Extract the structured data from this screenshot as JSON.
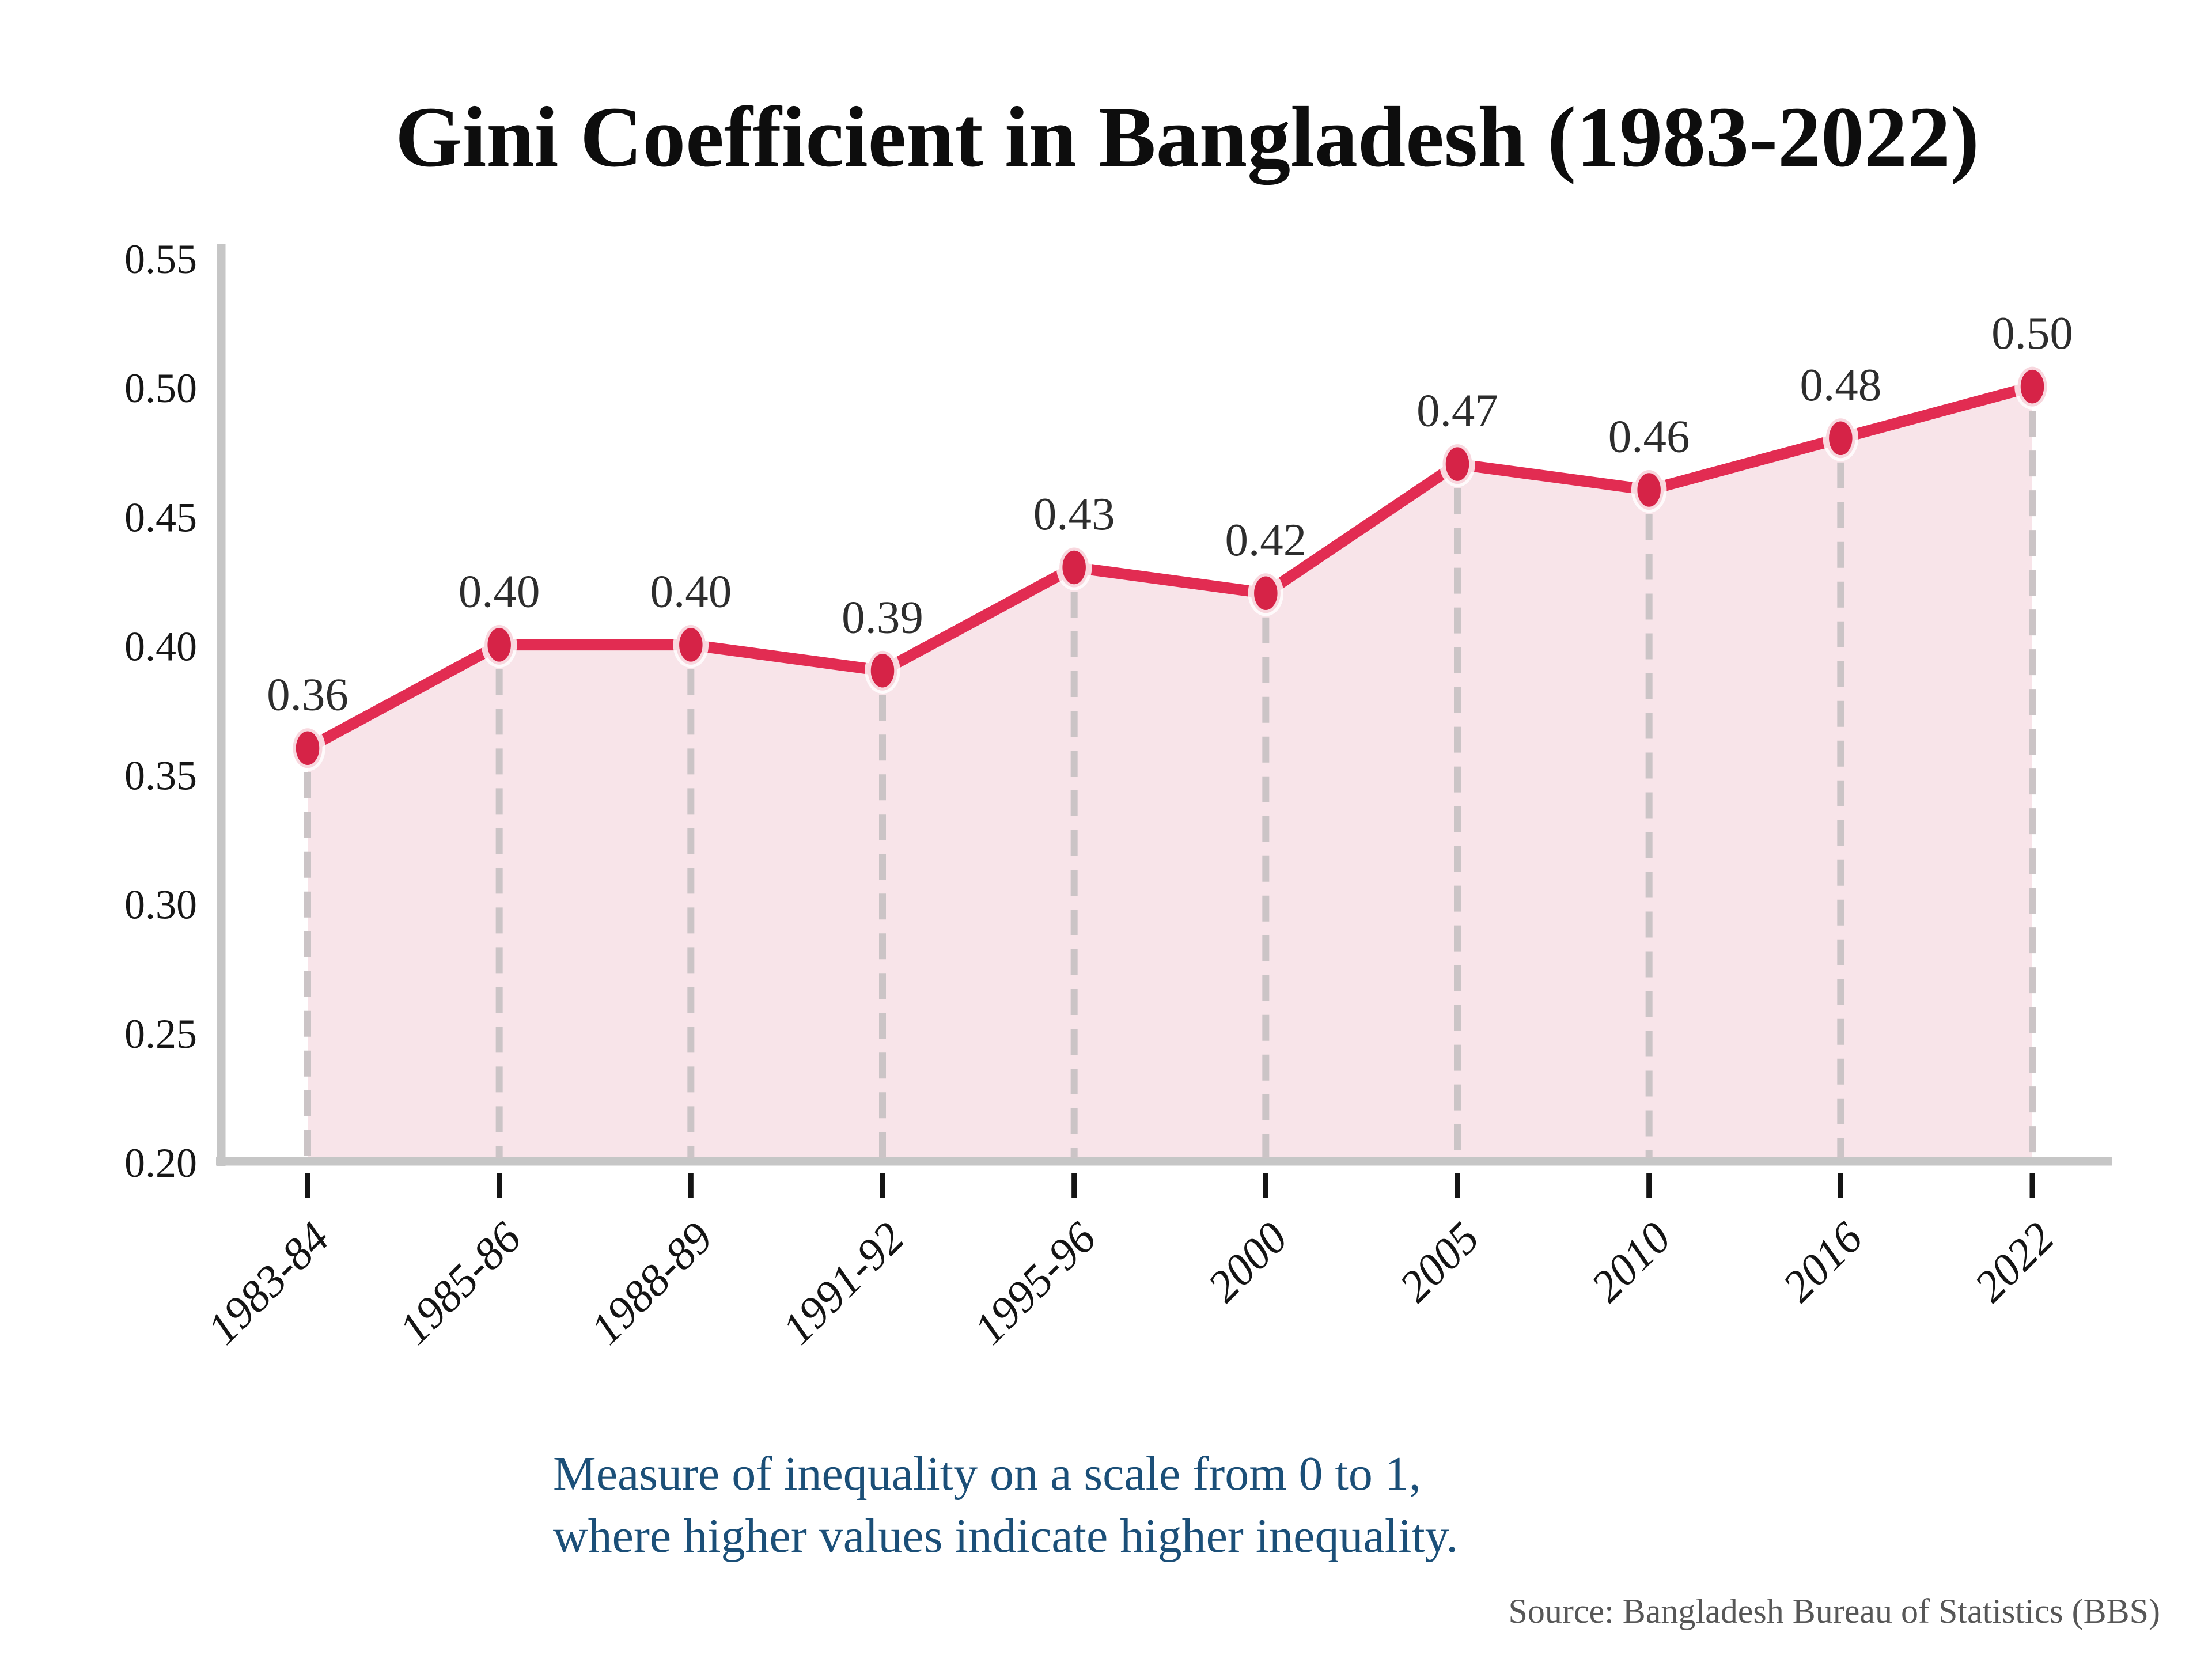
{
  "chart_data": {
    "type": "line",
    "title": "Gini Coefficient in Bangladesh (1983-2022)",
    "subtitle_line1": "Measure of inequality on a scale from 0 to 1,",
    "subtitle_line2": "where higher values indicate higher inequality.",
    "source": "Source: Bangladesh Bureau of Statistics (BBS)",
    "categories": [
      "1983-84",
      "1985-86",
      "1988-89",
      "1991-92",
      "1995-96",
      "2000",
      "2005",
      "2010",
      "2016",
      "2022"
    ],
    "values": [
      0.36,
      0.4,
      0.4,
      0.39,
      0.43,
      0.42,
      0.47,
      0.46,
      0.48,
      0.5
    ],
    "point_labels": [
      "0.36",
      "0.40",
      "0.40",
      "0.39",
      "0.43",
      "0.42",
      "0.47",
      "0.46",
      "0.48",
      "0.50"
    ],
    "ylim": [
      0.2,
      0.55
    ],
    "yticks": [
      0.2,
      0.25,
      0.3,
      0.35,
      0.4,
      0.45,
      0.5,
      0.55
    ],
    "ytick_labels": [
      "0.20",
      "0.25",
      "0.30",
      "0.35",
      "0.40",
      "0.45",
      "0.50",
      "0.55"
    ],
    "xlabel": "",
    "ylabel": "",
    "legend": "none",
    "grid": "vertical-dashed-drop-lines",
    "area_fill": true,
    "marker": "ellipse",
    "colors": {
      "line": "#e22c52",
      "marker": "#d62347",
      "marker_ring": "rgba(255,255,255,0.82)",
      "area": "#f8e4e9",
      "grid_dash": "#cbc4c6",
      "axis": "#c6c6c6",
      "tick": "#141414",
      "title": "#0d0d0d",
      "ytick_label": "#161616",
      "xtick_label": "#141414",
      "data_label": "#2d2d2d",
      "subtitle": "#1b4f78",
      "source": "#575757"
    }
  }
}
